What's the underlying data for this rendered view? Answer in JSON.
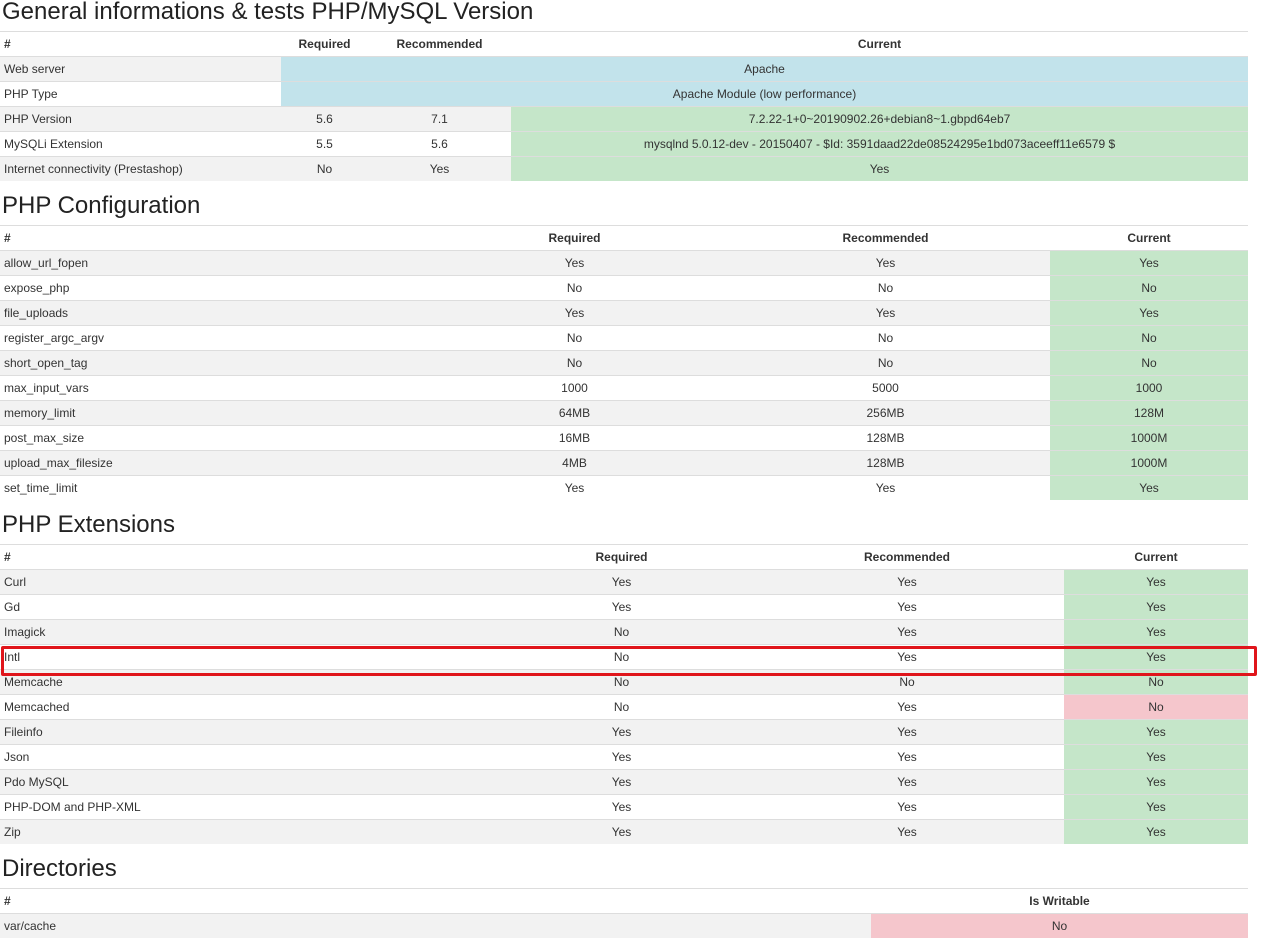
{
  "general": {
    "title": "General informations & tests PHP/MySQL Version",
    "headers": [
      "#",
      "Required",
      "Recommended",
      "Current"
    ],
    "rows": [
      {
        "name": "Web server",
        "current": "Apache"
      },
      {
        "name": "PHP Type",
        "current": "Apache Module (low performance)"
      },
      {
        "name": "PHP Version",
        "required": "5.6",
        "recommended": "7.1",
        "current": "7.2.22-1+0~20190902.26+debian8~1.gbpd64eb7"
      },
      {
        "name": "MySQLi Extension",
        "required": "5.5",
        "recommended": "5.6",
        "current": "mysqlnd 5.0.12-dev - 20150407 - $Id: 3591daad22de08524295e1bd073aceeff11e6579 $"
      },
      {
        "name": "Internet connectivity (Prestashop)",
        "required": "No",
        "recommended": "Yes",
        "current": "Yes"
      }
    ]
  },
  "config": {
    "title": "PHP Configuration",
    "headers": [
      "#",
      "Required",
      "Recommended",
      "Current"
    ],
    "rows": [
      {
        "name": "allow_url_fopen",
        "required": "Yes",
        "recommended": "Yes",
        "current": "Yes"
      },
      {
        "name": "expose_php",
        "required": "No",
        "recommended": "No",
        "current": "No"
      },
      {
        "name": "file_uploads",
        "required": "Yes",
        "recommended": "Yes",
        "current": "Yes"
      },
      {
        "name": "register_argc_argv",
        "required": "No",
        "recommended": "No",
        "current": "No"
      },
      {
        "name": "short_open_tag",
        "required": "No",
        "recommended": "No",
        "current": "No"
      },
      {
        "name": "max_input_vars",
        "required": "1000",
        "recommended": "5000",
        "current": "1000"
      },
      {
        "name": "memory_limit",
        "required": "64MB",
        "recommended": "256MB",
        "current": "128M"
      },
      {
        "name": "post_max_size",
        "required": "16MB",
        "recommended": "128MB",
        "current": "1000M"
      },
      {
        "name": "upload_max_filesize",
        "required": "4MB",
        "recommended": "128MB",
        "current": "1000M"
      },
      {
        "name": "set_time_limit",
        "required": "Yes",
        "recommended": "Yes",
        "current": "Yes"
      }
    ]
  },
  "extensions": {
    "title": "PHP Extensions",
    "headers": [
      "#",
      "Required",
      "Recommended",
      "Current"
    ],
    "rows": [
      {
        "name": "Curl",
        "required": "Yes",
        "recommended": "Yes",
        "current": "Yes"
      },
      {
        "name": "Gd",
        "required": "Yes",
        "recommended": "Yes",
        "current": "Yes"
      },
      {
        "name": "Imagick",
        "required": "No",
        "recommended": "Yes",
        "current": "Yes"
      },
      {
        "name": "Intl",
        "required": "No",
        "recommended": "Yes",
        "current": "Yes"
      },
      {
        "name": "Memcache",
        "required": "No",
        "recommended": "No",
        "current": "No"
      },
      {
        "name": "Memcached",
        "required": "No",
        "recommended": "Yes",
        "current": "No"
      },
      {
        "name": "Fileinfo",
        "required": "Yes",
        "recommended": "Yes",
        "current": "Yes"
      },
      {
        "name": "Json",
        "required": "Yes",
        "recommended": "Yes",
        "current": "Yes"
      },
      {
        "name": "Pdo MySQL",
        "required": "Yes",
        "recommended": "Yes",
        "current": "Yes"
      },
      {
        "name": "PHP-DOM and PHP-XML",
        "required": "Yes",
        "recommended": "Yes",
        "current": "Yes"
      },
      {
        "name": "Zip",
        "required": "Yes",
        "recommended": "Yes",
        "current": "Yes"
      }
    ]
  },
  "directories": {
    "title": "Directories",
    "headers": [
      "#",
      "Is Writable"
    ],
    "rows": [
      {
        "name": "var/cache",
        "writable": "No"
      }
    ]
  },
  "colors": {
    "info": "#c2e3eb",
    "ok": "#c5e6c9",
    "error": "#f5c6cc",
    "highlight": "#e0151b"
  }
}
